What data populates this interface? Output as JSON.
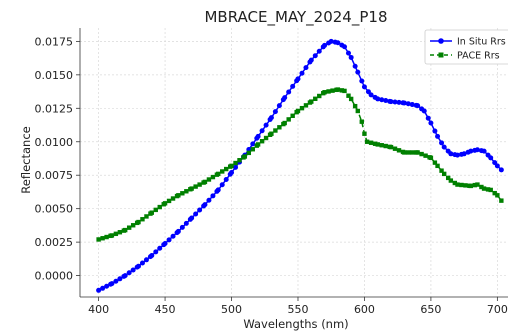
{
  "chart_data": {
    "type": "line",
    "title": "MBRACE_MAY_2024_P18",
    "xlabel": "Wavelengths (nm)",
    "ylabel": "Reflectance",
    "xlim": [
      386,
      708
    ],
    "ylim": [
      -0.0016,
      0.0185
    ],
    "xticks": [
      400,
      450,
      500,
      550,
      600,
      650,
      700
    ],
    "yticks": [
      0.0,
      0.0025,
      0.005,
      0.0075,
      0.01,
      0.0125,
      0.015,
      0.0175
    ],
    "xtick_labels": [
      "400",
      "450",
      "500",
      "550",
      "600",
      "650",
      "700"
    ],
    "ytick_labels": [
      "0.0000",
      "0.0025",
      "0.0050",
      "0.0075",
      "0.0100",
      "0.0125",
      "0.0150",
      "0.0175"
    ],
    "grid": true,
    "legend_position": "top-right",
    "series": [
      {
        "name": "In Situ Rrs",
        "color": "#0000ff",
        "marker": "circle",
        "line_style": "solid",
        "points": [
          [
            400,
            -0.0011
          ],
          [
            410,
            -0.0006
          ],
          [
            420,
            0.0
          ],
          [
            430,
            0.0007
          ],
          [
            440,
            0.0015
          ],
          [
            450,
            0.0024
          ],
          [
            460,
            0.0033
          ],
          [
            470,
            0.0043
          ],
          [
            480,
            0.0053
          ],
          [
            490,
            0.0064
          ],
          [
            500,
            0.0077
          ],
          [
            510,
            0.009
          ],
          [
            520,
            0.0104
          ],
          [
            530,
            0.0118
          ],
          [
            540,
            0.0133
          ],
          [
            550,
            0.0147
          ],
          [
            560,
            0.0161
          ],
          [
            570,
            0.0172
          ],
          [
            575,
            0.0175
          ],
          [
            580,
            0.0174
          ],
          [
            585,
            0.0171
          ],
          [
            590,
            0.0163
          ],
          [
            595,
            0.0152
          ],
          [
            600,
            0.0141
          ],
          [
            605,
            0.0135
          ],
          [
            610,
            0.0132
          ],
          [
            620,
            0.013
          ],
          [
            630,
            0.0129
          ],
          [
            640,
            0.0127
          ],
          [
            645,
            0.0123
          ],
          [
            650,
            0.0114
          ],
          [
            655,
            0.0104
          ],
          [
            660,
            0.0096
          ],
          [
            665,
            0.0091
          ],
          [
            670,
            0.009
          ],
          [
            675,
            0.0091
          ],
          [
            680,
            0.0093
          ],
          [
            685,
            0.0094
          ],
          [
            690,
            0.0093
          ],
          [
            695,
            0.0088
          ],
          [
            700,
            0.0082
          ],
          [
            703,
            0.0079
          ]
        ]
      },
      {
        "name": "PACE Rrs",
        "color": "#008000",
        "marker": "square",
        "line_style": "dashed",
        "points": [
          [
            400,
            0.0027
          ],
          [
            410,
            0.003
          ],
          [
            420,
            0.0034
          ],
          [
            430,
            0.004
          ],
          [
            440,
            0.0047
          ],
          [
            450,
            0.0054
          ],
          [
            460,
            0.006
          ],
          [
            470,
            0.0065
          ],
          [
            480,
            0.007
          ],
          [
            490,
            0.0076
          ],
          [
            500,
            0.0082
          ],
          [
            510,
            0.0089
          ],
          [
            520,
            0.0098
          ],
          [
            530,
            0.0106
          ],
          [
            540,
            0.0114
          ],
          [
            550,
            0.0123
          ],
          [
            560,
            0.013
          ],
          [
            570,
            0.0137
          ],
          [
            580,
            0.0139
          ],
          [
            585,
            0.0138
          ],
          [
            590,
            0.0132
          ],
          [
            595,
            0.0123
          ],
          [
            598,
            0.0115
          ],
          [
            600,
            0.0106
          ],
          [
            602,
            0.01
          ],
          [
            610,
            0.0098
          ],
          [
            620,
            0.0096
          ],
          [
            630,
            0.0092
          ],
          [
            640,
            0.0092
          ],
          [
            650,
            0.0088
          ],
          [
            655,
            0.0082
          ],
          [
            660,
            0.0076
          ],
          [
            665,
            0.0071
          ],
          [
            670,
            0.0068
          ],
          [
            680,
            0.0067
          ],
          [
            685,
            0.0068
          ],
          [
            690,
            0.0065
          ],
          [
            695,
            0.0064
          ],
          [
            700,
            0.006
          ],
          [
            703,
            0.0056
          ]
        ]
      }
    ]
  }
}
